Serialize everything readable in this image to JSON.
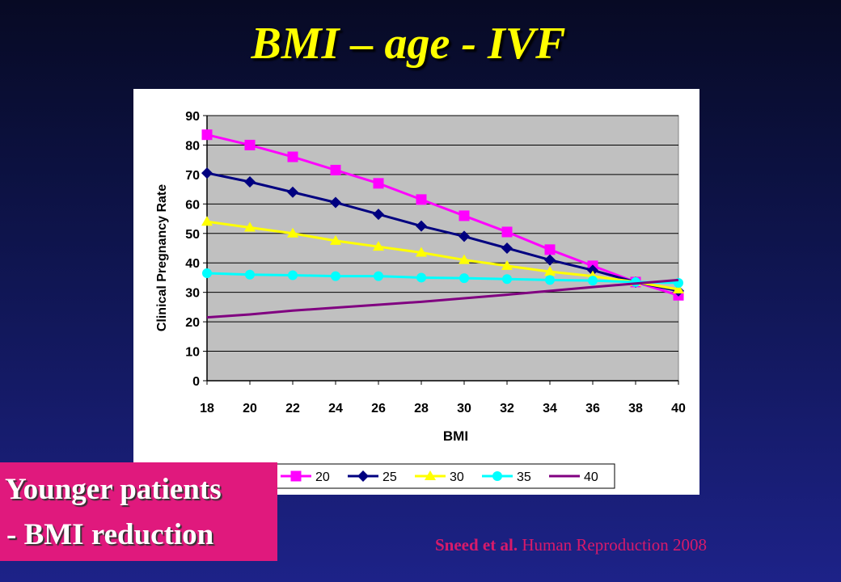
{
  "slide": {
    "title": "BMI – age - IVF",
    "callout_line1": "Younger patients",
    "callout_line2": "- BMI reduction",
    "citation_authors": "Sneed et al.",
    "citation_source": "Human Reproduction 2008"
  },
  "colors": {
    "title": "#ffff00",
    "callout_bg": "#e0197d",
    "citation": "#d81a6a",
    "plot_bg": "#c0c0c0"
  },
  "chart_data": {
    "type": "line",
    "title": "",
    "xlabel": "BMI",
    "ylabel": "Clinical Pregnancy Rate",
    "x": [
      18,
      20,
      22,
      24,
      26,
      28,
      30,
      32,
      34,
      36,
      38,
      40
    ],
    "xlim": [
      18,
      40
    ],
    "ylim": [
      0,
      90
    ],
    "yticks": [
      0,
      10,
      20,
      30,
      40,
      50,
      60,
      70,
      80,
      90
    ],
    "grid": true,
    "legend_position": "bottom",
    "series": [
      {
        "name": "20",
        "color": "#ff00ff",
        "marker": "square",
        "values": [
          83.5,
          80,
          76,
          71.5,
          67,
          61.5,
          56,
          50.5,
          44.5,
          39,
          33.5,
          29
        ]
      },
      {
        "name": "25",
        "color": "#000080",
        "marker": "diamond",
        "values": [
          70.5,
          67.5,
          64,
          60.5,
          56.5,
          52.5,
          49,
          45,
          41,
          37.5,
          33.5,
          30.5
        ]
      },
      {
        "name": "30",
        "color": "#ffff00",
        "marker": "triangle",
        "values": [
          54,
          52,
          50,
          47.5,
          45.5,
          43.5,
          41,
          39,
          37,
          35.5,
          33.5,
          31
        ]
      },
      {
        "name": "35",
        "color": "#00ffff",
        "marker": "circle",
        "values": [
          36.5,
          36,
          35.8,
          35.5,
          35.5,
          35,
          34.8,
          34.5,
          34.2,
          34,
          33.5,
          33.2
        ]
      },
      {
        "name": "40",
        "color": "#800080",
        "marker": "none",
        "values": [
          21.5,
          22.5,
          23.8,
          24.8,
          25.8,
          26.8,
          28,
          29.2,
          30.5,
          31.8,
          33,
          34.2
        ]
      }
    ]
  }
}
